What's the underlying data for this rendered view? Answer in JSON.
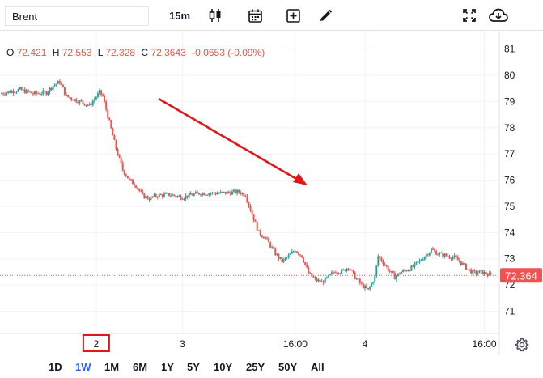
{
  "toolbar": {
    "symbol_value": "Brent",
    "interval_label": "15m",
    "icons": [
      "candlestick-icon",
      "calendar-icon",
      "add-compare-icon",
      "pencil-icon",
      "fullscreen-icon",
      "cloud-download-icon"
    ]
  },
  "legend": {
    "o_label": "O",
    "o_value": "72.421",
    "h_label": "H",
    "h_value": "72.553",
    "l_label": "L",
    "l_value": "72.328",
    "c_label": "C",
    "c_value": "72.3643",
    "change": "-0.0653 (-0.09%)"
  },
  "ranges": [
    {
      "label": "1D",
      "active": false
    },
    {
      "label": "1W",
      "active": true
    },
    {
      "label": "1M",
      "active": false
    },
    {
      "label": "6M",
      "active": false
    },
    {
      "label": "1Y",
      "active": false
    },
    {
      "label": "5Y",
      "active": false
    },
    {
      "label": "10Y",
      "active": false
    },
    {
      "label": "25Y",
      "active": false
    },
    {
      "label": "50Y",
      "active": false
    },
    {
      "label": "All",
      "active": false
    }
  ],
  "colors": {
    "up": "#26a69a",
    "down": "#ef5350",
    "arrow": "#e0161b",
    "active_range": "#2962ff",
    "grid": "#f0f3fa",
    "highlight_box": "#e0161b"
  },
  "chart_data": {
    "type": "candlestick",
    "title": "",
    "x_tick_labels": [
      {
        "label": "2",
        "x": 29,
        "highlighted": true
      },
      {
        "label": "3",
        "x": 55
      },
      {
        "label": "16:00",
        "x": 89
      },
      {
        "label": "4",
        "x": 110
      },
      {
        "label": "16:00",
        "x": 146
      }
    ],
    "y_ticks": [
      71,
      72,
      73,
      74,
      75,
      76,
      77,
      78,
      79,
      80,
      81
    ],
    "ylim": [
      70.15,
      81.7
    ],
    "xlim": [
      0,
      150.5
    ],
    "last_price": 72.364,
    "last_price_label": "72.364",
    "anchors": [
      [
        0,
        79.3
      ],
      [
        6,
        79.45
      ],
      [
        10,
        79.3
      ],
      [
        14,
        79.35
      ],
      [
        16,
        79.6
      ],
      [
        18,
        79.75
      ],
      [
        20,
        79.2
      ],
      [
        24,
        79.0
      ],
      [
        27,
        78.85
      ],
      [
        30,
        79.35
      ],
      [
        31,
        79.2
      ],
      [
        33,
        78.2
      ],
      [
        35,
        77.2
      ],
      [
        37,
        76.4
      ],
      [
        39,
        76.0
      ],
      [
        41,
        75.8
      ],
      [
        43,
        75.4
      ],
      [
        45,
        75.3
      ],
      [
        47,
        75.4
      ],
      [
        51,
        75.45
      ],
      [
        55,
        75.35
      ],
      [
        60,
        75.5
      ],
      [
        66,
        75.5
      ],
      [
        72,
        75.55
      ],
      [
        74,
        75.45
      ],
      [
        76,
        74.7
      ],
      [
        78,
        74.0
      ],
      [
        80,
        73.8
      ],
      [
        83,
        73.2
      ],
      [
        85,
        72.9
      ],
      [
        87,
        73.1
      ],
      [
        89,
        73.35
      ],
      [
        91,
        73.1
      ],
      [
        93,
        72.45
      ],
      [
        95,
        72.2
      ],
      [
        97,
        72.1
      ],
      [
        99,
        72.3
      ],
      [
        101,
        72.55
      ],
      [
        103,
        72.5
      ],
      [
        105,
        72.7
      ],
      [
        107,
        72.3
      ],
      [
        109,
        72.0
      ],
      [
        111,
        71.8
      ],
      [
        113,
        72.3
      ],
      [
        114,
        73.1
      ],
      [
        115,
        72.95
      ],
      [
        117,
        72.6
      ],
      [
        119,
        72.3
      ],
      [
        121,
        72.5
      ],
      [
        124,
        72.65
      ],
      [
        126,
        72.85
      ],
      [
        128,
        73.1
      ],
      [
        130,
        73.35
      ],
      [
        132,
        73.2
      ],
      [
        135,
        73.1
      ],
      [
        137,
        73.05
      ],
      [
        139,
        72.85
      ],
      [
        141,
        72.6
      ],
      [
        143,
        72.45
      ],
      [
        145,
        72.5
      ],
      [
        147,
        72.4
      ],
      [
        148,
        72.36
      ]
    ]
  }
}
